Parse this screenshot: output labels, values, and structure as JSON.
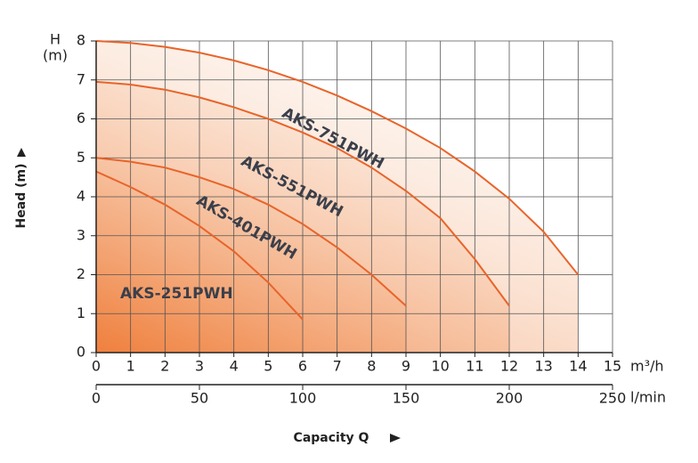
{
  "chart_data": {
    "type": "line",
    "y_label_top": "H",
    "y_unit_top": "(m)",
    "y_label": "Head (m)",
    "x_label": "Capacity Q",
    "x_unit": "m³/h",
    "x2_unit": "l/min",
    "x": [
      0,
      1,
      2,
      3,
      4,
      5,
      6,
      7,
      8,
      9,
      10,
      11,
      12,
      13,
      14
    ],
    "series": [
      {
        "name": "AKS-751PWH",
        "color": "#e8642a",
        "values": [
          8,
          7.95,
          7.85,
          7.7,
          7.5,
          7.25,
          6.95,
          6.6,
          6.2,
          5.75,
          5.25,
          4.65,
          3.95,
          3.1,
          2.0
        ]
      },
      {
        "name": "AKS-551PWH",
        "color": "#e8642a",
        "values": [
          6.95,
          6.88,
          6.75,
          6.55,
          6.3,
          6.0,
          5.65,
          5.25,
          4.75,
          4.15,
          3.45,
          2.4,
          1.2,
          null,
          null
        ]
      },
      {
        "name": "AKS-401PWH",
        "color": "#e8642a",
        "values": [
          5.0,
          4.9,
          4.75,
          4.5,
          4.2,
          3.8,
          3.3,
          2.7,
          2.0,
          1.2,
          null,
          null,
          null,
          null,
          null
        ]
      },
      {
        "name": "AKS-251PWH",
        "color": "#e8642a",
        "values": [
          4.65,
          4.25,
          3.8,
          3.25,
          2.6,
          1.8,
          0.85,
          null,
          null,
          null,
          null,
          null,
          null,
          null,
          null
        ]
      }
    ],
    "xlim": [
      0,
      15
    ],
    "xticks": [
      0,
      1,
      2,
      3,
      4,
      5,
      6,
      7,
      8,
      9,
      10,
      11,
      12,
      13,
      14,
      15
    ],
    "x2lim": [
      0,
      250
    ],
    "x2ticks": [
      0,
      50,
      100,
      150,
      200,
      250
    ],
    "ylim": [
      0,
      8
    ],
    "yticks": [
      0,
      1,
      2,
      3,
      4,
      5,
      6,
      7,
      8
    ],
    "grid": true
  }
}
